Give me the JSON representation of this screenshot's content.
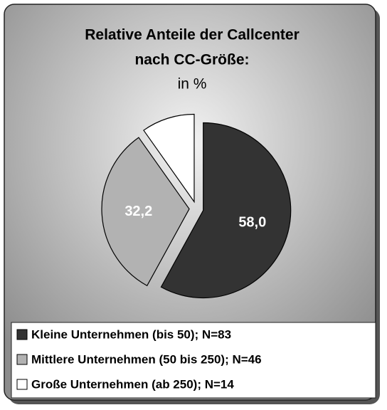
{
  "chart_data": {
    "type": "pie",
    "title": "Relative Anteile der Callcenter nach CC-Größe:",
    "subtitle": "in %",
    "categories": [
      "Kleine Unternehmen (bis 50); N=83",
      "Mittlere Unternehmen (50 bis 250); N=46",
      "Große Unternehmen (ab 250); N=14"
    ],
    "values": [
      58.0,
      32.2,
      9.8
    ],
    "value_labels": [
      "58,0",
      "32,2",
      null
    ],
    "colors": [
      "#333333",
      "#b2b2b2",
      "#ffffff"
    ],
    "legend": "bottom"
  }
}
